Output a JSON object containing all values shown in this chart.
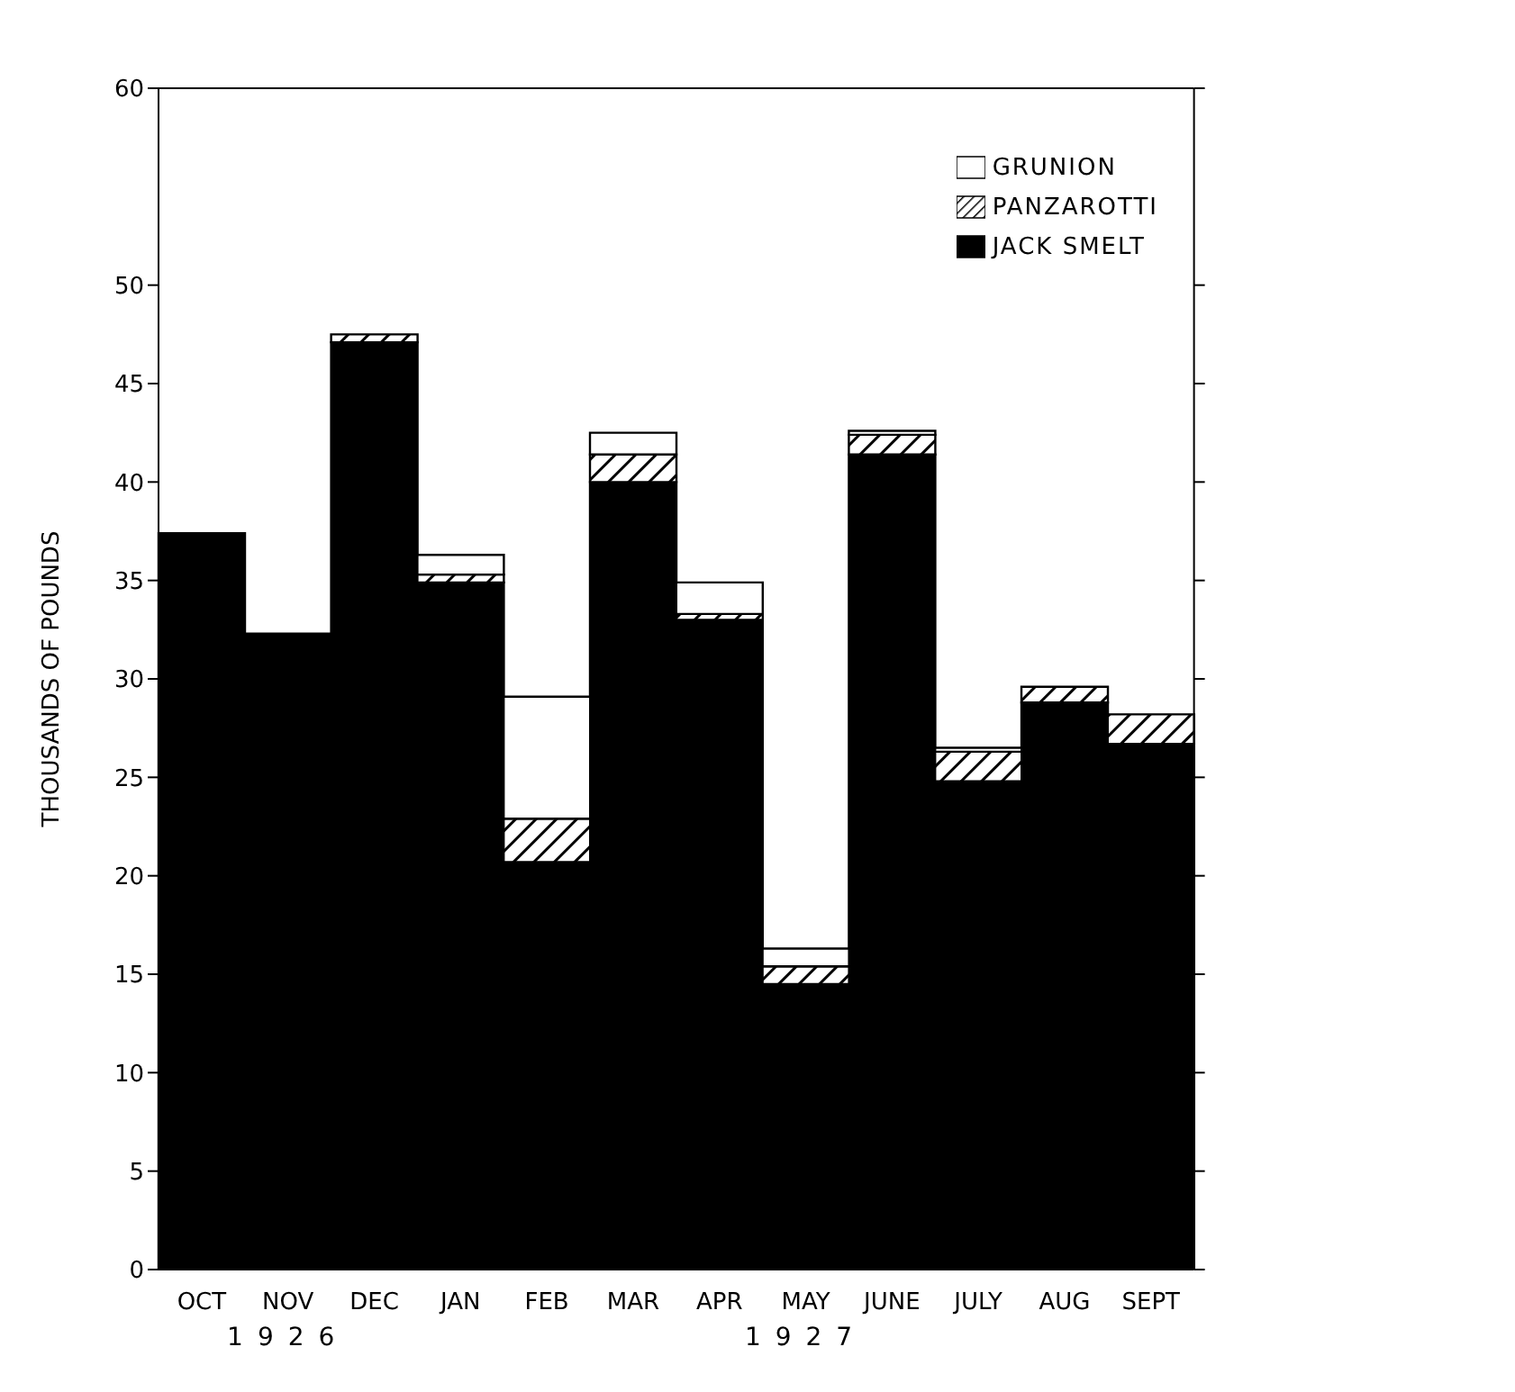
{
  "chart_data": {
    "type": "bar",
    "stacked": true,
    "ylabel": "THOUSANDS OF POUNDS",
    "categories": [
      "OCT",
      "NOV",
      "DEC",
      "JAN",
      "FEB",
      "MAR",
      "APR",
      "MAY",
      "JUNE",
      "JULY",
      "AUG",
      "SEPT"
    ],
    "series": [
      {
        "name": "JACK SMELT",
        "color": "#000000",
        "values": [
          37.4,
          32.3,
          47.1,
          34.9,
          20.7,
          40.0,
          33.0,
          14.5,
          41.4,
          24.8,
          28.8,
          26.7
        ]
      },
      {
        "name": "PANZAROTTI",
        "color": "#000000",
        "values": [
          null,
          null,
          0.4,
          0.4,
          2.2,
          1.4,
          0.3,
          0.9,
          1.0,
          1.5,
          0.8,
          1.5
        ]
      },
      {
        "name": "GRUNION",
        "color": "#ffffff",
        "values": [
          null,
          null,
          null,
          1.0,
          6.2,
          1.1,
          1.6,
          0.9,
          0.2,
          0.2,
          null,
          null
        ]
      }
    ],
    "ylim": [
      0,
      60
    ],
    "yticks": [
      0,
      5,
      10,
      15,
      20,
      25,
      30,
      35,
      40,
      45,
      50,
      60
    ],
    "legend": "top right",
    "annotations": [
      "1926",
      "1927"
    ]
  }
}
